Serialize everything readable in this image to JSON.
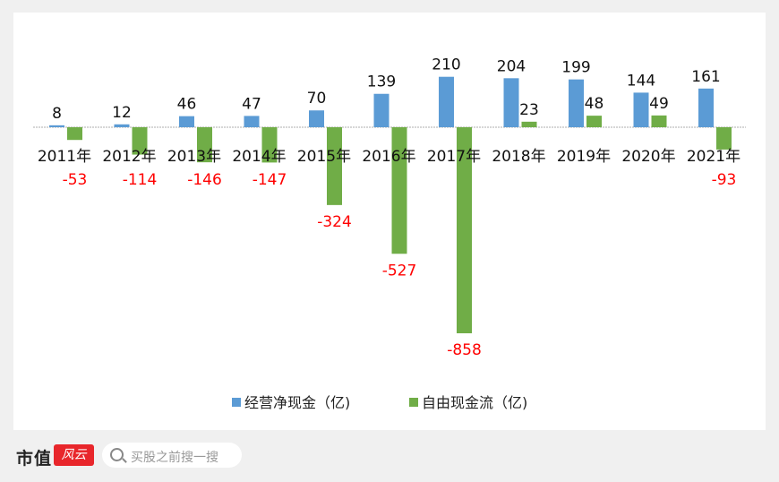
{
  "chart_data": {
    "type": "bar",
    "categories": [
      "2011年",
      "2012年",
      "2013年",
      "2014年",
      "2015年",
      "2016年",
      "2017年",
      "2018年",
      "2019年",
      "2020年",
      "2021年"
    ],
    "series": [
      {
        "name": "经营净现金（亿)",
        "color": "#5b9bd5",
        "values": [
          8,
          12,
          46,
          47,
          70,
          139,
          210,
          204,
          199,
          144,
          161
        ]
      },
      {
        "name": "自由现金流（亿)",
        "color": "#70ad47",
        "values": [
          -53,
          -114,
          -146,
          -147,
          -324,
          -527,
          -858,
          23,
          48,
          49,
          -93
        ]
      }
    ],
    "legend_position": "bottom",
    "negative_label_color": "#ff0000",
    "ylim": [
      -858,
      210
    ]
  },
  "footer": {
    "logo": "市值",
    "logo_mark": "风云",
    "search_placeholder": "买股之前搜一搜"
  }
}
